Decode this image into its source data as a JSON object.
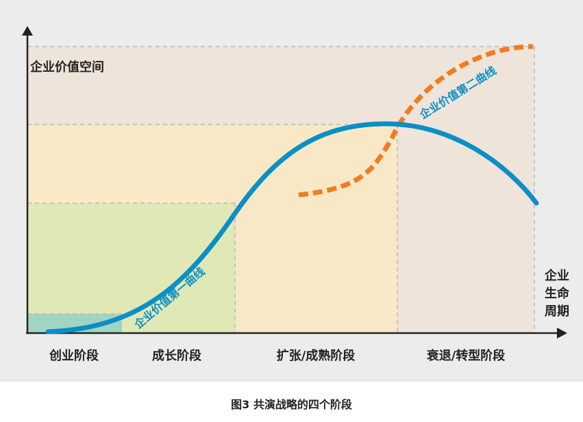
{
  "y_axis_label": "企业价值空间",
  "x_axis_label": "企业生命周期",
  "stages": [
    "创业阶段",
    "成长阶段",
    "扩张/成熟阶段",
    "衰退/转型阶段"
  ],
  "curve1_label": "企业价值第一曲线",
  "curve2_label": "企业价值第二曲线",
  "caption": "图3  共演战略的四个阶段",
  "colors": {
    "curve1": "#0a8fc6",
    "curve2": "#f27c22",
    "zone_startup": "#9fd6c0",
    "zone_growth": "#dfe8b4",
    "zone_mature": "#f8e7c2",
    "zone_decline": "#efe4da",
    "zone_top": "#efe3d9"
  }
}
